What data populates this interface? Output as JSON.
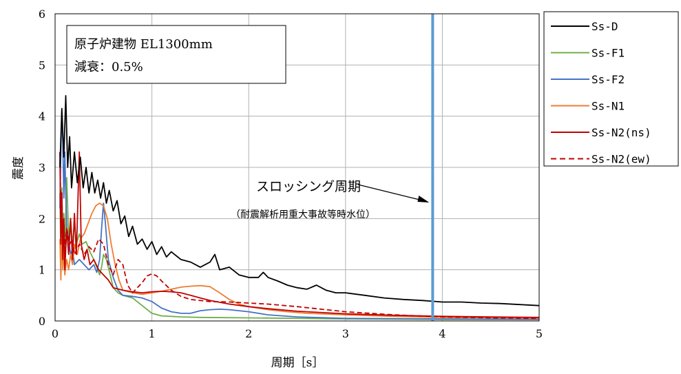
{
  "chart_data": {
    "type": "line",
    "xlabel": "周期［s］",
    "ylabel": "震度",
    "xlim": [
      0,
      5
    ],
    "ylim": [
      0,
      6
    ],
    "x_ticks": [
      "0",
      "1",
      "2",
      "3",
      "4",
      "5"
    ],
    "y_ticks": [
      "0",
      "1",
      "2",
      "3",
      "4",
      "5",
      "6"
    ],
    "grid": true,
    "legend_position": "right",
    "info_box": [
      "原子炉建物 EL1300mm",
      "減衰：0.5%"
    ],
    "annotation": {
      "label": "スロッシング周期",
      "sublabel": "（耐震解析用重大事故等時水位）",
      "x": 3.9
    },
    "series": [
      {
        "name": "Ss-D",
        "color": "#000000",
        "dash": "solid",
        "points": [
          [
            0.05,
            3.0
          ],
          [
            0.07,
            4.15
          ],
          [
            0.09,
            3.2
          ],
          [
            0.11,
            4.4
          ],
          [
            0.13,
            3.0
          ],
          [
            0.15,
            3.6
          ],
          [
            0.17,
            2.6
          ],
          [
            0.2,
            3.3
          ],
          [
            0.23,
            2.7
          ],
          [
            0.26,
            3.2
          ],
          [
            0.29,
            2.6
          ],
          [
            0.32,
            3.0
          ],
          [
            0.35,
            2.5
          ],
          [
            0.38,
            2.9
          ],
          [
            0.41,
            2.5
          ],
          [
            0.44,
            2.75
          ],
          [
            0.47,
            2.4
          ],
          [
            0.5,
            2.7
          ],
          [
            0.53,
            2.3
          ],
          [
            0.56,
            2.55
          ],
          [
            0.6,
            2.15
          ],
          [
            0.64,
            2.35
          ],
          [
            0.68,
            1.9
          ],
          [
            0.72,
            2.05
          ],
          [
            0.76,
            1.65
          ],
          [
            0.8,
            1.85
          ],
          [
            0.85,
            1.5
          ],
          [
            0.9,
            1.6
          ],
          [
            0.95,
            1.4
          ],
          [
            1.0,
            1.55
          ],
          [
            1.05,
            1.3
          ],
          [
            1.1,
            1.45
          ],
          [
            1.15,
            1.25
          ],
          [
            1.2,
            1.35
          ],
          [
            1.3,
            1.2
          ],
          [
            1.4,
            1.15
          ],
          [
            1.5,
            1.05
          ],
          [
            1.6,
            1.15
          ],
          [
            1.65,
            1.3
          ],
          [
            1.7,
            1.0
          ],
          [
            1.8,
            1.05
          ],
          [
            1.9,
            0.9
          ],
          [
            2.0,
            0.85
          ],
          [
            2.1,
            0.85
          ],
          [
            2.15,
            0.95
          ],
          [
            2.2,
            0.85
          ],
          [
            2.3,
            0.78
          ],
          [
            2.4,
            0.7
          ],
          [
            2.5,
            0.65
          ],
          [
            2.6,
            0.62
          ],
          [
            2.7,
            0.7
          ],
          [
            2.8,
            0.6
          ],
          [
            2.9,
            0.55
          ],
          [
            3.0,
            0.55
          ],
          [
            3.2,
            0.5
          ],
          [
            3.4,
            0.45
          ],
          [
            3.6,
            0.42
          ],
          [
            3.8,
            0.4
          ],
          [
            4.0,
            0.37
          ],
          [
            4.2,
            0.37
          ],
          [
            4.4,
            0.35
          ],
          [
            4.6,
            0.34
          ],
          [
            4.8,
            0.32
          ],
          [
            5.0,
            0.3
          ]
        ]
      },
      {
        "name": "Ss-F1",
        "color": "#70ad47",
        "dash": "solid",
        "points": [
          [
            0.05,
            2.5
          ],
          [
            0.06,
            1.2
          ],
          [
            0.07,
            2.6
          ],
          [
            0.08,
            1.5
          ],
          [
            0.09,
            2.1
          ],
          [
            0.1,
            1.3
          ],
          [
            0.12,
            2.8
          ],
          [
            0.14,
            1.6
          ],
          [
            0.16,
            2.0
          ],
          [
            0.18,
            1.5
          ],
          [
            0.2,
            1.9
          ],
          [
            0.22,
            1.5
          ],
          [
            0.25,
            1.7
          ],
          [
            0.28,
            1.5
          ],
          [
            0.32,
            1.55
          ],
          [
            0.36,
            1.35
          ],
          [
            0.4,
            1.2
          ],
          [
            0.43,
            1.05
          ],
          [
            0.46,
            0.9
          ],
          [
            0.48,
            1.05
          ],
          [
            0.5,
            1.3
          ],
          [
            0.53,
            1.2
          ],
          [
            0.57,
            0.9
          ],
          [
            0.6,
            0.65
          ],
          [
            0.65,
            0.55
          ],
          [
            0.7,
            0.5
          ],
          [
            0.8,
            0.45
          ],
          [
            0.9,
            0.3
          ],
          [
            1.0,
            0.15
          ],
          [
            1.1,
            0.1
          ],
          [
            1.3,
            0.08
          ],
          [
            1.5,
            0.07
          ],
          [
            2.0,
            0.06
          ],
          [
            3.0,
            0.04
          ],
          [
            4.0,
            0.03
          ],
          [
            5.0,
            0.03
          ]
        ]
      },
      {
        "name": "Ss-F2",
        "color": "#4472c4",
        "dash": "solid",
        "points": [
          [
            0.05,
            2.2
          ],
          [
            0.06,
            3.3
          ],
          [
            0.07,
            4.1
          ],
          [
            0.08,
            3.5
          ],
          [
            0.09,
            2.4
          ],
          [
            0.1,
            3.3
          ],
          [
            0.11,
            2.5
          ],
          [
            0.12,
            1.8
          ],
          [
            0.14,
            1.6
          ],
          [
            0.16,
            1.3
          ],
          [
            0.18,
            1.4
          ],
          [
            0.2,
            1.1
          ],
          [
            0.25,
            1.2
          ],
          [
            0.3,
            1.1
          ],
          [
            0.35,
            1.0
          ],
          [
            0.4,
            1.1
          ],
          [
            0.43,
            0.95
          ],
          [
            0.46,
            1.2
          ],
          [
            0.48,
            1.8
          ],
          [
            0.5,
            2.3
          ],
          [
            0.52,
            1.9
          ],
          [
            0.55,
            1.2
          ],
          [
            0.6,
            0.85
          ],
          [
            0.65,
            0.6
          ],
          [
            0.7,
            0.5
          ],
          [
            0.8,
            0.48
          ],
          [
            0.9,
            0.45
          ],
          [
            1.0,
            0.38
          ],
          [
            1.1,
            0.25
          ],
          [
            1.2,
            0.18
          ],
          [
            1.3,
            0.15
          ],
          [
            1.4,
            0.15
          ],
          [
            1.5,
            0.2
          ],
          [
            1.6,
            0.22
          ],
          [
            1.7,
            0.23
          ],
          [
            1.8,
            0.22
          ],
          [
            1.9,
            0.2
          ],
          [
            2.0,
            0.18
          ],
          [
            2.2,
            0.12
          ],
          [
            2.5,
            0.08
          ],
          [
            3.0,
            0.05
          ],
          [
            4.0,
            0.04
          ],
          [
            5.0,
            0.03
          ]
        ]
      },
      {
        "name": "Ss-N1",
        "color": "#ed7d31",
        "dash": "solid",
        "points": [
          [
            0.05,
            1.6
          ],
          [
            0.06,
            0.8
          ],
          [
            0.07,
            1.9
          ],
          [
            0.08,
            1.0
          ],
          [
            0.09,
            1.4
          ],
          [
            0.1,
            0.9
          ],
          [
            0.12,
            1.2
          ],
          [
            0.14,
            1.0
          ],
          [
            0.16,
            1.3
          ],
          [
            0.18,
            1.1
          ],
          [
            0.2,
            1.5
          ],
          [
            0.23,
            1.3
          ],
          [
            0.26,
            1.6
          ],
          [
            0.3,
            1.7
          ],
          [
            0.34,
            1.9
          ],
          [
            0.38,
            2.1
          ],
          [
            0.42,
            2.25
          ],
          [
            0.46,
            2.3
          ],
          [
            0.5,
            2.25
          ],
          [
            0.54,
            2.0
          ],
          [
            0.58,
            1.5
          ],
          [
            0.62,
            1.1
          ],
          [
            0.66,
            0.8
          ],
          [
            0.7,
            0.6
          ],
          [
            0.8,
            0.55
          ],
          [
            0.9,
            0.52
          ],
          [
            1.0,
            0.55
          ],
          [
            1.1,
            0.58
          ],
          [
            1.2,
            0.62
          ],
          [
            1.3,
            0.66
          ],
          [
            1.4,
            0.68
          ],
          [
            1.5,
            0.69
          ],
          [
            1.6,
            0.67
          ],
          [
            1.7,
            0.55
          ],
          [
            1.8,
            0.42
          ],
          [
            1.9,
            0.33
          ],
          [
            2.0,
            0.28
          ],
          [
            2.2,
            0.22
          ],
          [
            2.4,
            0.18
          ],
          [
            2.6,
            0.15
          ],
          [
            3.0,
            0.12
          ],
          [
            3.5,
            0.09
          ],
          [
            4.0,
            0.07
          ],
          [
            4.5,
            0.06
          ],
          [
            5.0,
            0.05
          ]
        ]
      },
      {
        "name": "Ss-N2(ns)",
        "color": "#c00000",
        "dash": "solid",
        "points": [
          [
            0.05,
            3.3
          ],
          [
            0.06,
            1.5
          ],
          [
            0.07,
            2.5
          ],
          [
            0.08,
            1.2
          ],
          [
            0.09,
            2.0
          ],
          [
            0.1,
            1.0
          ],
          [
            0.12,
            1.8
          ],
          [
            0.14,
            1.3
          ],
          [
            0.16,
            2.0
          ],
          [
            0.18,
            1.2
          ],
          [
            0.2,
            2.1
          ],
          [
            0.22,
            1.3
          ],
          [
            0.25,
            3.3
          ],
          [
            0.27,
            1.5
          ],
          [
            0.3,
            1.2
          ],
          [
            0.33,
            1.4
          ],
          [
            0.36,
            1.1
          ],
          [
            0.4,
            1.2
          ],
          [
            0.45,
            1.0
          ],
          [
            0.5,
            0.9
          ],
          [
            0.55,
            0.8
          ],
          [
            0.6,
            0.65
          ],
          [
            0.7,
            0.6
          ],
          [
            0.8,
            0.57
          ],
          [
            0.9,
            0.55
          ],
          [
            1.0,
            0.57
          ],
          [
            1.1,
            0.58
          ],
          [
            1.2,
            0.57
          ],
          [
            1.3,
            0.55
          ],
          [
            1.4,
            0.5
          ],
          [
            1.5,
            0.45
          ],
          [
            1.6,
            0.4
          ],
          [
            1.8,
            0.33
          ],
          [
            2.0,
            0.28
          ],
          [
            2.2,
            0.24
          ],
          [
            2.5,
            0.19
          ],
          [
            3.0,
            0.14
          ],
          [
            3.5,
            0.11
          ],
          [
            4.0,
            0.09
          ],
          [
            4.5,
            0.08
          ],
          [
            5.0,
            0.07
          ]
        ]
      },
      {
        "name": "Ss-N2(ew)",
        "color": "#c00000",
        "dash": "dashed",
        "points": [
          [
            0.05,
            3.3
          ],
          [
            0.06,
            2.2
          ],
          [
            0.07,
            2.5
          ],
          [
            0.08,
            1.6
          ],
          [
            0.09,
            2.0
          ],
          [
            0.1,
            1.4
          ],
          [
            0.12,
            1.8
          ],
          [
            0.15,
            1.5
          ],
          [
            0.18,
            1.6
          ],
          [
            0.2,
            1.3
          ],
          [
            0.25,
            1.5
          ],
          [
            0.3,
            1.3
          ],
          [
            0.35,
            1.45
          ],
          [
            0.4,
            1.35
          ],
          [
            0.45,
            1.6
          ],
          [
            0.5,
            1.5
          ],
          [
            0.55,
            1.1
          ],
          [
            0.6,
            0.9
          ],
          [
            0.65,
            1.2
          ],
          [
            0.7,
            1.1
          ],
          [
            0.75,
            0.7
          ],
          [
            0.8,
            0.55
          ],
          [
            0.85,
            0.65
          ],
          [
            0.9,
            0.75
          ],
          [
            0.95,
            0.88
          ],
          [
            1.0,
            0.92
          ],
          [
            1.05,
            0.88
          ],
          [
            1.1,
            0.78
          ],
          [
            1.2,
            0.6
          ],
          [
            1.3,
            0.48
          ],
          [
            1.4,
            0.42
          ],
          [
            1.6,
            0.38
          ],
          [
            1.8,
            0.37
          ],
          [
            2.0,
            0.35
          ],
          [
            2.2,
            0.33
          ],
          [
            2.5,
            0.28
          ],
          [
            3.0,
            0.18
          ],
          [
            3.5,
            0.12
          ],
          [
            4.0,
            0.08
          ],
          [
            4.5,
            0.06
          ],
          [
            5.0,
            0.05
          ]
        ]
      }
    ]
  }
}
